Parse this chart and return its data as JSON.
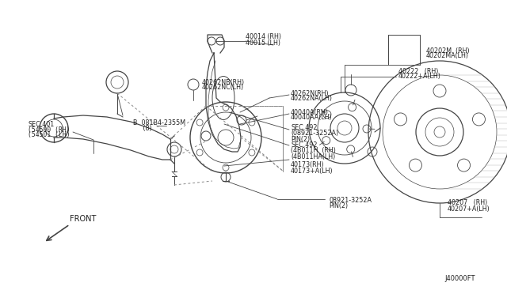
{
  "bg_color": "#ffffff",
  "line_color": "#444444",
  "text_color": "#222222",
  "part_number": "J40000FT",
  "figsize": [
    6.4,
    3.72
  ],
  "dpi": 100,
  "xlim": [
    0,
    640
  ],
  "ylim": [
    0,
    372
  ]
}
